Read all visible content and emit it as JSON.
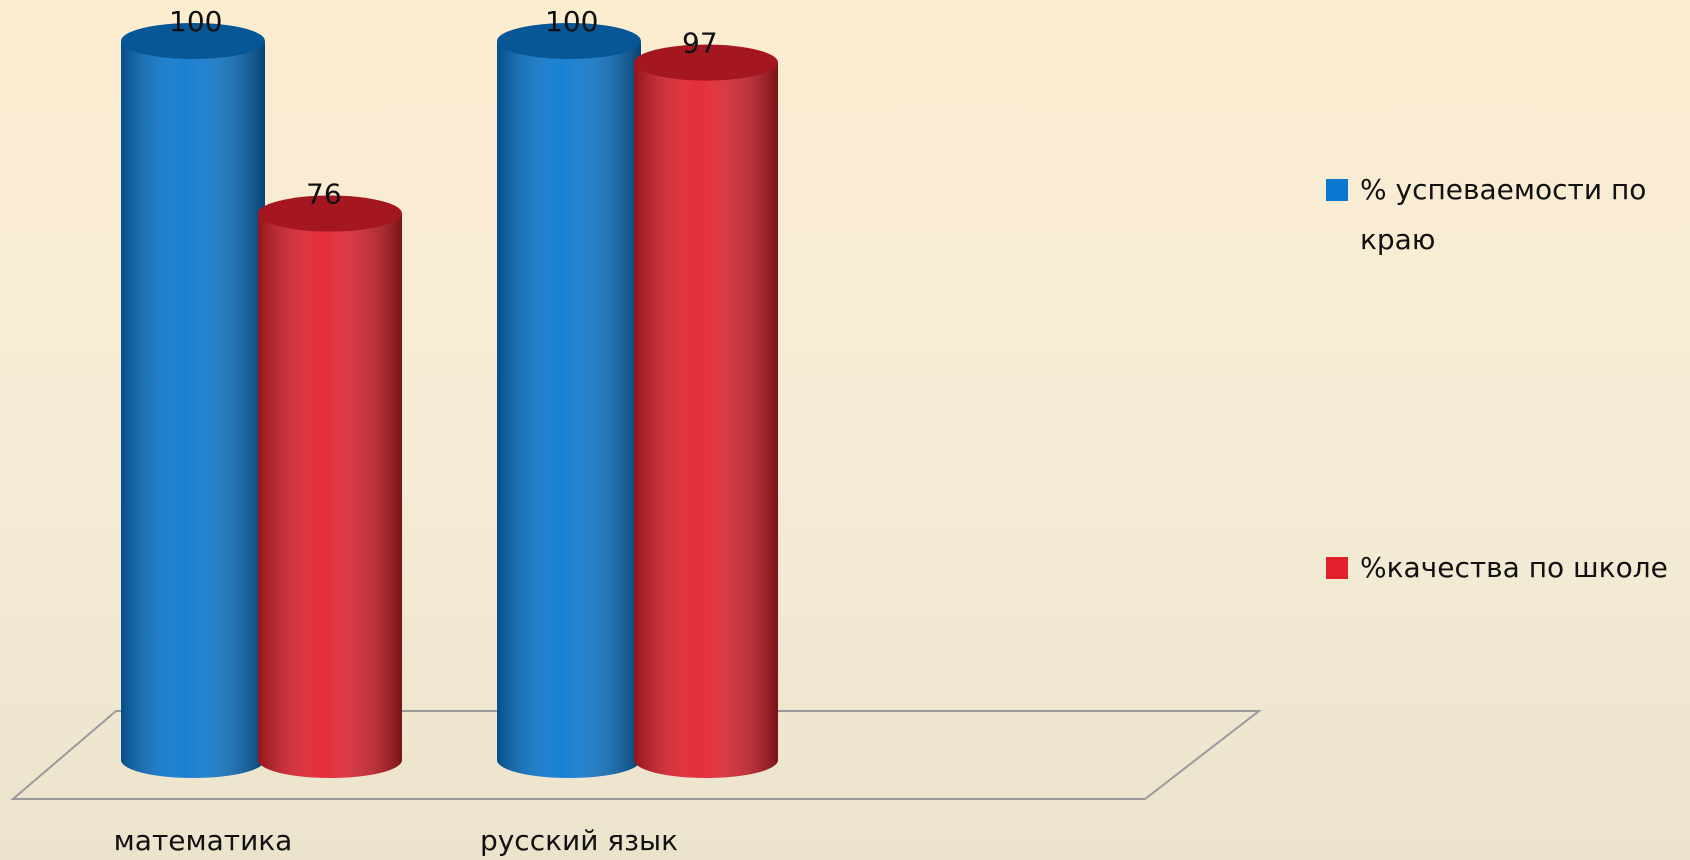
{
  "chart_data": {
    "type": "bar3d-cylinder",
    "categories": [
      "математика",
      "русский язык"
    ],
    "series": [
      {
        "name": "% успеваемости по краю",
        "color": "#0a78d0",
        "values": [
          100,
          100
        ]
      },
      {
        "name": "%качества по школе",
        "color": "#e3202d",
        "values": [
          76,
          97
        ]
      }
    ],
    "ylim": [
      0,
      100
    ],
    "legend": "right"
  }
}
